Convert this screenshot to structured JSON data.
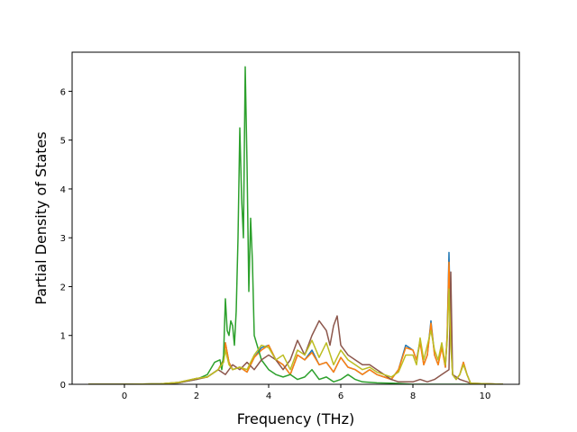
{
  "chart_data": {
    "type": "line",
    "title": "",
    "xlabel": "Frequency (THz)",
    "ylabel": "Partial Density of States",
    "xlim": [
      -1.45,
      10.95
    ],
    "ylim": [
      0,
      6.8
    ],
    "xticks": [
      0,
      2,
      4,
      6,
      8,
      10
    ],
    "yticks": [
      0,
      1,
      2,
      3,
      4,
      5,
      6
    ],
    "grid": false,
    "legend": "none",
    "series": [
      {
        "color": "#1f77b4",
        "x": [
          -1.0,
          0.0,
          1.0,
          1.5,
          2.0,
          2.3,
          2.6,
          2.75,
          2.8,
          2.9,
          3.0,
          3.2,
          3.4,
          3.6,
          3.8,
          4.0,
          4.2,
          4.4,
          4.6,
          4.8,
          5.0,
          5.2,
          5.4,
          5.6,
          5.8,
          6.0,
          6.2,
          6.4,
          6.6,
          6.8,
          7.0,
          7.2,
          7.4,
          7.6,
          7.8,
          8.0,
          8.1,
          8.2,
          8.3,
          8.4,
          8.5,
          8.6,
          8.7,
          8.8,
          8.9,
          8.95,
          9.0,
          9.05,
          9.1,
          9.2,
          9.3,
          9.4,
          9.5,
          9.6,
          10.5
        ],
        "y": [
          0,
          0,
          0.01,
          0.04,
          0.12,
          0.15,
          0.3,
          0.5,
          0.85,
          0.45,
          0.3,
          0.35,
          0.25,
          0.55,
          0.75,
          0.8,
          0.5,
          0.4,
          0.2,
          0.6,
          0.5,
          0.7,
          0.4,
          0.45,
          0.25,
          0.55,
          0.35,
          0.3,
          0.2,
          0.3,
          0.2,
          0.15,
          0.1,
          0.3,
          0.8,
          0.7,
          0.5,
          0.9,
          0.4,
          0.6,
          1.3,
          0.6,
          0.4,
          0.8,
          0.35,
          1.0,
          2.7,
          1.0,
          0.2,
          0.1,
          0.2,
          0.45,
          0.2,
          0.02,
          0
        ]
      },
      {
        "color": "#ff7f0e",
        "x": [
          -1.0,
          0.0,
          1.0,
          1.5,
          2.0,
          2.3,
          2.6,
          2.75,
          2.8,
          2.9,
          3.0,
          3.2,
          3.4,
          3.6,
          3.8,
          4.0,
          4.2,
          4.4,
          4.6,
          4.8,
          5.0,
          5.2,
          5.4,
          5.6,
          5.8,
          6.0,
          6.2,
          6.4,
          6.6,
          6.8,
          7.0,
          7.2,
          7.4,
          7.6,
          7.8,
          8.0,
          8.1,
          8.2,
          8.3,
          8.4,
          8.5,
          8.6,
          8.7,
          8.8,
          8.9,
          8.95,
          9.0,
          9.05,
          9.1,
          9.2,
          9.3,
          9.4,
          9.5,
          9.6,
          10.5
        ],
        "y": [
          0,
          0,
          0.01,
          0.04,
          0.12,
          0.15,
          0.3,
          0.5,
          0.85,
          0.45,
          0.3,
          0.35,
          0.25,
          0.55,
          0.7,
          0.8,
          0.5,
          0.4,
          0.2,
          0.6,
          0.5,
          0.65,
          0.4,
          0.45,
          0.25,
          0.55,
          0.35,
          0.3,
          0.2,
          0.3,
          0.2,
          0.15,
          0.1,
          0.3,
          0.75,
          0.7,
          0.5,
          0.85,
          0.4,
          0.6,
          1.25,
          0.6,
          0.4,
          0.75,
          0.35,
          1.0,
          2.5,
          1.0,
          0.2,
          0.1,
          0.2,
          0.45,
          0.2,
          0.02,
          0
        ]
      },
      {
        "color": "#2ca02c",
        "x": [
          -1.0,
          0.0,
          1.0,
          1.5,
          2.0,
          2.3,
          2.5,
          2.65,
          2.7,
          2.75,
          2.8,
          2.85,
          2.9,
          2.95,
          3.0,
          3.05,
          3.1,
          3.15,
          3.2,
          3.25,
          3.3,
          3.35,
          3.4,
          3.45,
          3.5,
          3.55,
          3.6,
          3.8,
          4.0,
          4.2,
          4.4,
          4.6,
          4.8,
          5.0,
          5.2,
          5.4,
          5.6,
          5.8,
          6.0,
          6.2,
          6.4,
          6.6,
          7.0,
          7.5,
          8.0,
          10.5
        ],
        "y": [
          0,
          0,
          0.01,
          0.03,
          0.1,
          0.2,
          0.45,
          0.5,
          0.3,
          0.6,
          1.75,
          1.1,
          1.0,
          1.3,
          1.2,
          0.8,
          1.5,
          3.0,
          5.25,
          3.8,
          3.0,
          6.5,
          4.5,
          1.9,
          3.4,
          2.5,
          1.0,
          0.5,
          0.3,
          0.2,
          0.15,
          0.2,
          0.1,
          0.15,
          0.3,
          0.1,
          0.15,
          0.05,
          0.1,
          0.2,
          0.1,
          0.05,
          0.03,
          0.02,
          0,
          0
        ]
      },
      {
        "color": "#8c564b",
        "x": [
          -1.0,
          0.0,
          1.0,
          1.5,
          2.0,
          2.3,
          2.6,
          2.8,
          3.0,
          3.2,
          3.4,
          3.6,
          3.8,
          4.0,
          4.2,
          4.4,
          4.6,
          4.8,
          5.0,
          5.2,
          5.4,
          5.6,
          5.7,
          5.8,
          5.9,
          6.0,
          6.2,
          6.4,
          6.6,
          6.8,
          7.0,
          7.2,
          7.4,
          7.6,
          7.8,
          8.0,
          8.2,
          8.4,
          8.6,
          8.8,
          9.0,
          9.05,
          9.1,
          9.3,
          9.5,
          9.6,
          10.5
        ],
        "y": [
          0,
          0,
          0.01,
          0.03,
          0.1,
          0.15,
          0.3,
          0.2,
          0.4,
          0.3,
          0.45,
          0.3,
          0.5,
          0.6,
          0.5,
          0.3,
          0.5,
          0.9,
          0.6,
          1.0,
          1.3,
          1.1,
          0.8,
          1.2,
          1.4,
          0.8,
          0.6,
          0.5,
          0.4,
          0.4,
          0.3,
          0.2,
          0.1,
          0.05,
          0.05,
          0.05,
          0.1,
          0.05,
          0.1,
          0.2,
          0.3,
          2.3,
          0.2,
          0.1,
          0.05,
          0.02,
          0
        ]
      },
      {
        "color": "#bcbd22",
        "x": [
          -1.0,
          0.0,
          1.0,
          1.5,
          2.0,
          2.3,
          2.6,
          2.75,
          2.8,
          2.9,
          3.0,
          3.2,
          3.4,
          3.6,
          3.8,
          4.0,
          4.2,
          4.4,
          4.6,
          4.8,
          5.0,
          5.2,
          5.4,
          5.6,
          5.8,
          6.0,
          6.2,
          6.4,
          6.6,
          6.8,
          7.0,
          7.2,
          7.4,
          7.6,
          7.8,
          8.0,
          8.1,
          8.2,
          8.3,
          8.4,
          8.5,
          8.6,
          8.7,
          8.8,
          8.9,
          8.95,
          9.0,
          9.05,
          9.1,
          9.2,
          9.3,
          9.4,
          9.5,
          9.6,
          10.5
        ],
        "y": [
          0,
          0,
          0.01,
          0.04,
          0.12,
          0.15,
          0.3,
          0.45,
          0.7,
          0.4,
          0.3,
          0.35,
          0.3,
          0.6,
          0.8,
          0.75,
          0.5,
          0.6,
          0.3,
          0.7,
          0.6,
          0.9,
          0.55,
          0.85,
          0.4,
          0.7,
          0.5,
          0.4,
          0.3,
          0.35,
          0.25,
          0.2,
          0.15,
          0.25,
          0.6,
          0.6,
          0.4,
          0.95,
          0.5,
          0.8,
          1.1,
          0.7,
          0.5,
          0.85,
          0.4,
          0.9,
          1.95,
          0.8,
          0.2,
          0.1,
          0.2,
          0.4,
          0.2,
          0.02,
          0
        ]
      }
    ]
  }
}
